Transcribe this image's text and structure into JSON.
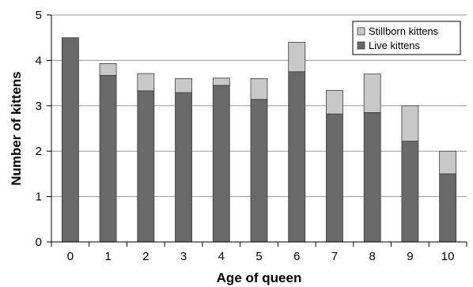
{
  "chart_data": {
    "type": "bar",
    "stacked": true,
    "xlabel": "Age of queen",
    "ylabel": "Number of kittens",
    "categories": [
      "0",
      "1",
      "2",
      "3",
      "4",
      "5",
      "6",
      "7",
      "8",
      "9",
      "10"
    ],
    "yticks": [
      "0",
      "1",
      "2",
      "3",
      "4",
      "5"
    ],
    "ylim": [
      0,
      5
    ],
    "grid": true,
    "legend_position": "top-right",
    "series": [
      {
        "name": "Live kittens",
        "color": "#696969",
        "values": [
          4.5,
          3.67,
          3.33,
          3.29,
          3.45,
          3.14,
          3.75,
          2.82,
          2.85,
          2.22,
          1.5
        ]
      },
      {
        "name": "Stillborn kittens",
        "color": "#c8c8c8",
        "values": [
          0.0,
          0.26,
          0.38,
          0.31,
          0.16,
          0.46,
          0.65,
          0.52,
          0.85,
          0.78,
          0.5
        ]
      }
    ],
    "legend_order": [
      1,
      0
    ]
  }
}
